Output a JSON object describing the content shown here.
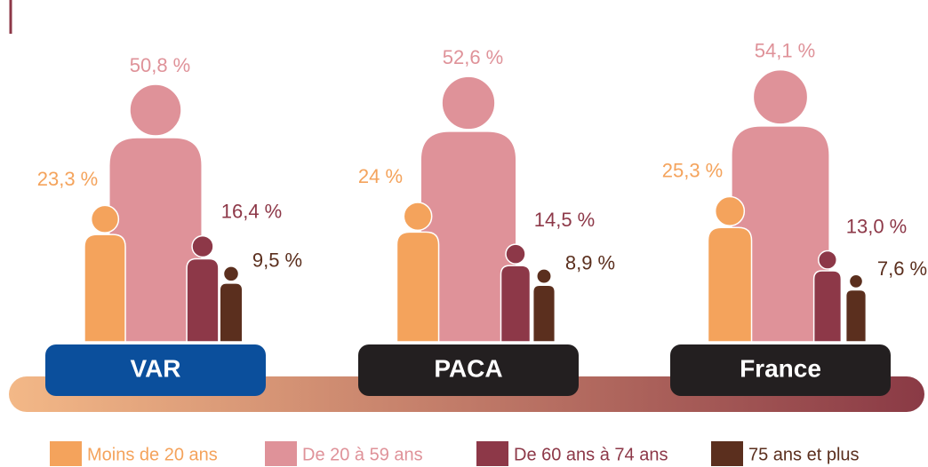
{
  "chart_data": {
    "type": "pictogram",
    "categories": [
      "VAR",
      "PACA",
      "France"
    ],
    "category_colors": [
      "#0b4f9c",
      "#231f20",
      "#231f20"
    ],
    "series": [
      {
        "name": "Moins de 20 ans",
        "color": "#f4a35c",
        "values": [
          23.3,
          24,
          25.3
        ],
        "value_labels": [
          "23,3 %",
          "24 %",
          "25,3 %"
        ]
      },
      {
        "name": "De 20 à 59 ans",
        "color": "#df9299",
        "values": [
          50.8,
          52.6,
          54.1
        ],
        "value_labels": [
          "50,8 %",
          "52,6 %",
          "54,1 %"
        ]
      },
      {
        "name": "De 60 ans à 74 ans",
        "color": "#8d3848",
        "values": [
          16.4,
          14.5,
          13.0
        ],
        "value_labels": [
          "16,4 %",
          "14,5 %",
          "13,0 %"
        ]
      },
      {
        "name": "75 ans et plus",
        "color": "#5b2f1e",
        "values": [
          9.5,
          8.9,
          7.6
        ],
        "value_labels": [
          "9,5 %",
          "8,9 %",
          "7,6 %"
        ]
      }
    ]
  }
}
